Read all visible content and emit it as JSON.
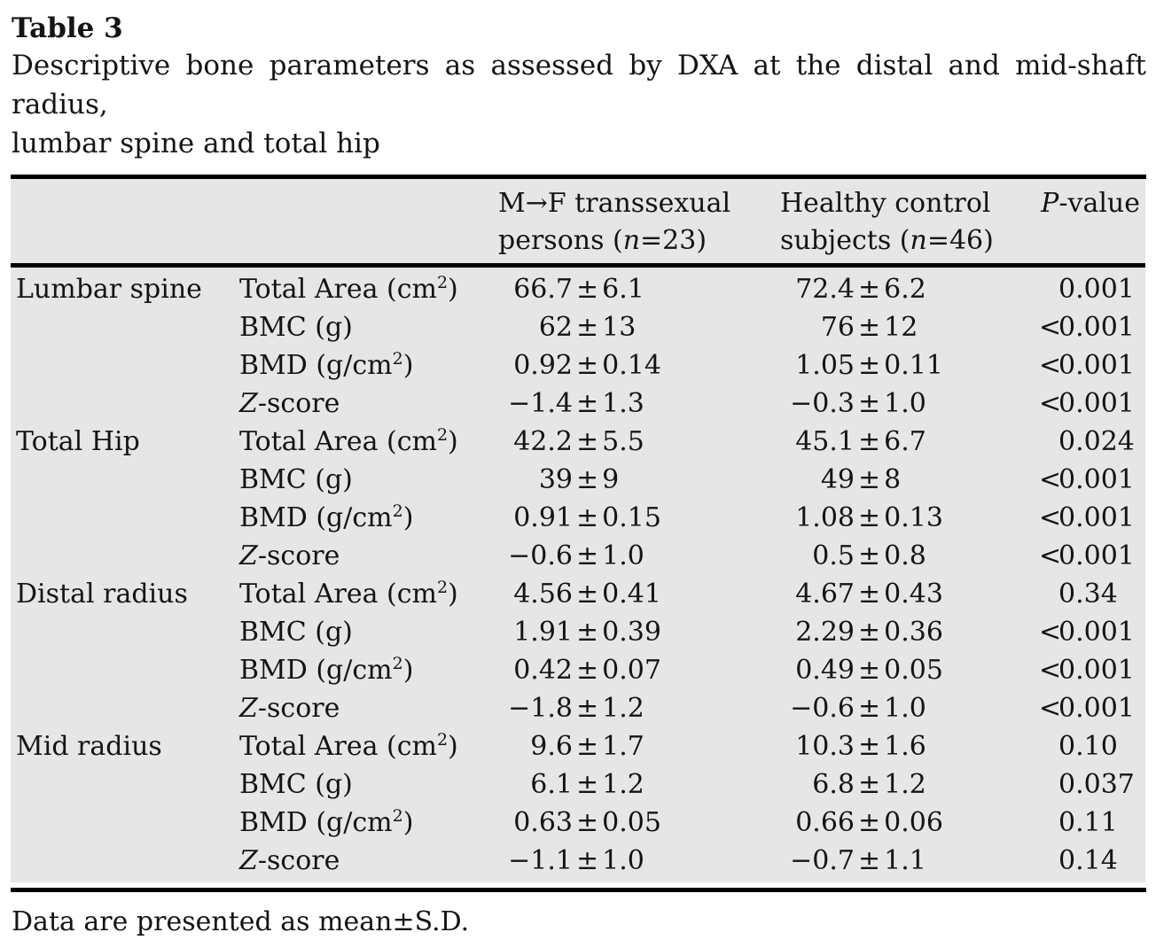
{
  "table_label": "Table 3",
  "caption": {
    "line1": "Descriptive bone parameters as assessed by DXA at the distal and mid-shaft radius,",
    "line2": "lumbar spine and total hip"
  },
  "header": {
    "col_group1": {
      "line1": "M→F transsexual",
      "line2_pre": "persons (",
      "line2_var": "n",
      "line2_post": "=23)"
    },
    "col_group2": {
      "line1": "Healthy control",
      "line2_pre": "subjects (",
      "line2_var": "n",
      "line2_post": "=46)"
    },
    "col_pvalue": {
      "var": "P",
      "rest": "-value"
    }
  },
  "groups": [
    {
      "region": "Lumbar spine",
      "rows": [
        {
          "param_italic": "",
          "param": "Total Area (cm",
          "param_sup": "2",
          "param_post": ")",
          "mf": "66.7±6.1",
          "control": "72.4±6.2",
          "p": "0.001"
        },
        {
          "param_italic": "",
          "param": "BMC (g)",
          "param_sup": "",
          "param_post": "",
          "mf": "62±13",
          "control": "76±12",
          "p": "<0.001"
        },
        {
          "param_italic": "",
          "param": "BMD (g/cm",
          "param_sup": "2",
          "param_post": ")",
          "mf": "0.92±0.14",
          "control": "1.05±0.11",
          "p": "<0.001"
        },
        {
          "param_italic": "Z",
          "param": "-score",
          "param_sup": "",
          "param_post": "",
          "mf": "−1.4±1.3",
          "control": "−0.3±1.0",
          "p": "<0.001"
        }
      ]
    },
    {
      "region": "Total Hip",
      "rows": [
        {
          "param_italic": "",
          "param": "Total Area (cm",
          "param_sup": "2",
          "param_post": ")",
          "mf": "42.2±5.5",
          "control": "45.1±6.7",
          "p": "0.024"
        },
        {
          "param_italic": "",
          "param": "BMC (g)",
          "param_sup": "",
          "param_post": "",
          "mf": "39±9",
          "control": "49±8",
          "p": "<0.001"
        },
        {
          "param_italic": "",
          "param": "BMD (g/cm",
          "param_sup": "2",
          "param_post": ")",
          "mf": "0.91±0.15",
          "control": "1.08±0.13",
          "p": "<0.001"
        },
        {
          "param_italic": "Z",
          "param": "-score",
          "param_sup": "",
          "param_post": "",
          "mf": "−0.6±1.0",
          "control": "0.5±0.8",
          "p": "<0.001"
        }
      ]
    },
    {
      "region": "Distal radius",
      "rows": [
        {
          "param_italic": "",
          "param": "Total Area (cm",
          "param_sup": "2",
          "param_post": ")",
          "mf": "4.56±0.41",
          "control": "4.67±0.43",
          "p": "0.34"
        },
        {
          "param_italic": "",
          "param": "BMC (g)",
          "param_sup": "",
          "param_post": "",
          "mf": "1.91±0.39",
          "control": "2.29±0.36",
          "p": "<0.001"
        },
        {
          "param_italic": "",
          "param": "BMD (g/cm",
          "param_sup": "2",
          "param_post": ")",
          "mf": "0.42±0.07",
          "control": "0.49±0.05",
          "p": "<0.001"
        },
        {
          "param_italic": "Z",
          "param": "-score",
          "param_sup": "",
          "param_post": "",
          "mf": "−1.8±1.2",
          "control": "−0.6±1.0",
          "p": "<0.001"
        }
      ]
    },
    {
      "region": "Mid radius",
      "rows": [
        {
          "param_italic": "",
          "param": "Total Area (cm",
          "param_sup": "2",
          "param_post": ")",
          "mf": "9.6±1.7",
          "control": "10.3±1.6",
          "p": "0.10"
        },
        {
          "param_italic": "",
          "param": "BMC (g)",
          "param_sup": "",
          "param_post": "",
          "mf": "6.1±1.2",
          "control": "6.8±1.2",
          "p": "0.037"
        },
        {
          "param_italic": "",
          "param": "BMD (g/cm",
          "param_sup": "2",
          "param_post": ")",
          "mf": "0.63±0.05",
          "control": "0.66±0.06",
          "p": "0.11"
        },
        {
          "param_italic": "Z",
          "param": "-score",
          "param_sup": "",
          "param_post": "",
          "mf": "−1.1±1.0",
          "control": "−0.7±1.1",
          "p": "0.14"
        }
      ]
    }
  ],
  "footnote": "Data are presented as mean±S.D."
}
